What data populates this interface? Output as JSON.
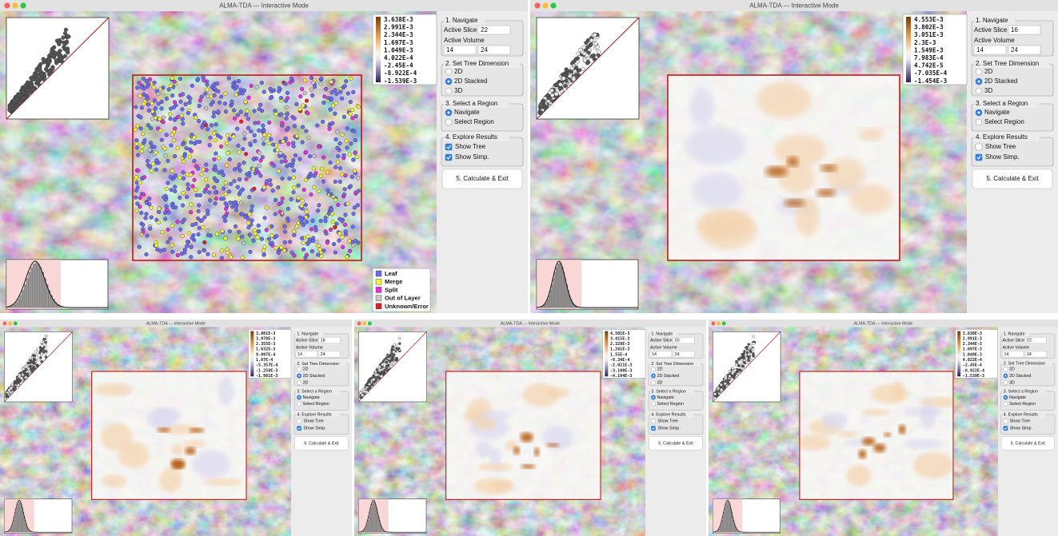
{
  "windows": [
    {
      "title": "ALMA-TDA --- Interactive Mode",
      "colorbar_labels": [
        "3.638E-3",
        "2.991E-3",
        "2.344E-3",
        "1.697E-3",
        "1.049E-3",
        "4.022E-4",
        "-2.45E-4",
        "-8.922E-4",
        "-1.539E-3"
      ],
      "navigate": {
        "heading": "1. Navigate",
        "slice_label": "Active Slice",
        "slice": 22,
        "volume_label": "Active Volume",
        "volume": [
          14,
          24
        ]
      },
      "dimension": {
        "heading": "2. Set Tree Dimension",
        "options": [
          "2D",
          "2D Stacked",
          "3D"
        ],
        "selected": 1
      },
      "region": {
        "heading": "3. Select a Region",
        "options": [
          "Navigate",
          "Select Region"
        ],
        "selected": 0
      },
      "explore": {
        "heading": "4. Explore Results",
        "options": [
          "Show Tree",
          "Show Simp."
        ],
        "checked": [
          true,
          true
        ]
      },
      "button": "5. Calculate & Exit",
      "legend": [
        {
          "label": "Leaf",
          "color": "#6b6bf0"
        },
        {
          "label": "Merge",
          "color": "#f0f040"
        },
        {
          "label": "Split",
          "color": "#e030e0"
        },
        {
          "label": "Out of Layer",
          "color": "#c8c8c8"
        },
        {
          "label": "Unknown/Error",
          "color": "#e02020"
        }
      ]
    },
    {
      "title": "ALMA-TDA --- Interactive Mode",
      "colorbar_labels": [
        "4.553E-3",
        "3.802E-3",
        "3.051E-3",
        "2.3E-3",
        "1.549E-3",
        "7.983E-4",
        "4.742E-5",
        "-7.035E-4",
        "-1.454E-3"
      ],
      "navigate": {
        "heading": "1. Navigate",
        "slice_label": "Active Slice",
        "slice": 16,
        "volume_label": "Active Volume",
        "volume": [
          14,
          24
        ]
      },
      "dimension": {
        "heading": "2. Set Tree Dimension",
        "options": [
          "2D",
          "2D Stacked",
          "3D"
        ],
        "selected": 1
      },
      "region": {
        "heading": "3. Select a Region",
        "options": [
          "Navigate",
          "Select Region"
        ],
        "selected": 0
      },
      "explore": {
        "heading": "4. Explore Results",
        "options": [
          "Show Tree",
          "Show Simp."
        ],
        "checked": [
          false,
          true
        ]
      },
      "button": "5. Calculate & Exit"
    },
    {
      "title": "ALMA-TDA --- Interactive Mode",
      "colorbar_labels": [
        "3.801E-3",
        "3.078E-3",
        "2.355E-3",
        "1.632E-3",
        "9.097E-4",
        "1.87E-4",
        "-5.357E-4",
        "-1.258E-3",
        "-1.981E-3"
      ],
      "navigate": {
        "heading": "1. Navigate",
        "slice_label": "Active Slice",
        "slice": 18,
        "volume_label": "Active Volume",
        "volume": [
          14,
          24
        ]
      },
      "dimension": {
        "heading": "2. Set Tree Dimension",
        "options": [
          "2D",
          "2D Stacked",
          "3D"
        ],
        "selected": 1
      },
      "region": {
        "heading": "3. Select a Region",
        "options": [
          "Navigate",
          "Select Region"
        ],
        "selected": 0
      },
      "explore": {
        "heading": "4. Explore Results",
        "options": [
          "Show Tree",
          "Show Simp."
        ],
        "checked": [
          false,
          true
        ]
      },
      "button": "5. Calculate & Exit"
    },
    {
      "title": "ALMA-TDA --- Interactive Mode",
      "colorbar_labels": [
        "4.501E-3",
        "3.415E-3",
        "2.328E-3",
        "1.241E-3",
        "1.55E-4",
        "-9.34E-4",
        "-2.021E-3",
        "-3.108E-3",
        "-4.194E-3"
      ],
      "navigate": {
        "heading": "1. Navigate",
        "slice_label": "Active Slice",
        "slice": 20,
        "volume_label": "Active Volume",
        "volume": [
          14,
          24
        ]
      },
      "dimension": {
        "heading": "2. Set Tree Dimension",
        "options": [
          "2D",
          "2D Stacked",
          "3D"
        ],
        "selected": 1
      },
      "region": {
        "heading": "3. Select a Region",
        "options": [
          "Navigate",
          "Select Region"
        ],
        "selected": 0
      },
      "explore": {
        "heading": "4. Explore Results",
        "options": [
          "Show Tree",
          "Show Simp."
        ],
        "checked": [
          false,
          true
        ]
      },
      "button": "5. Calculate & Exit"
    },
    {
      "title": "ALMA-TDA --- Interactive Mode",
      "colorbar_labels": [
        "3.638E-3",
        "2.991E-3",
        "2.344E-3",
        "1.697E-3",
        "1.049E-3",
        "4.022E-4",
        "-2.45E-4",
        "-8.922E-4",
        "-1.539E-3"
      ],
      "navigate": {
        "heading": "1. Navigate",
        "slice_label": "Active Slice",
        "slice": 22,
        "volume_label": "Active Volume",
        "volume": [
          14,
          24
        ]
      },
      "dimension": {
        "heading": "2. Set Tree Dimension",
        "options": [
          "2D",
          "2D Stacked",
          "3D"
        ],
        "selected": 1
      },
      "region": {
        "heading": "3. Select a Region",
        "options": [
          "Navigate",
          "Select Region"
        ],
        "selected": 0
      },
      "explore": {
        "heading": "4. Explore Results",
        "options": [
          "Show Tree",
          "Show Simp."
        ],
        "checked": [
          false,
          true
        ]
      },
      "button": "5. Calculate & Exit"
    }
  ]
}
